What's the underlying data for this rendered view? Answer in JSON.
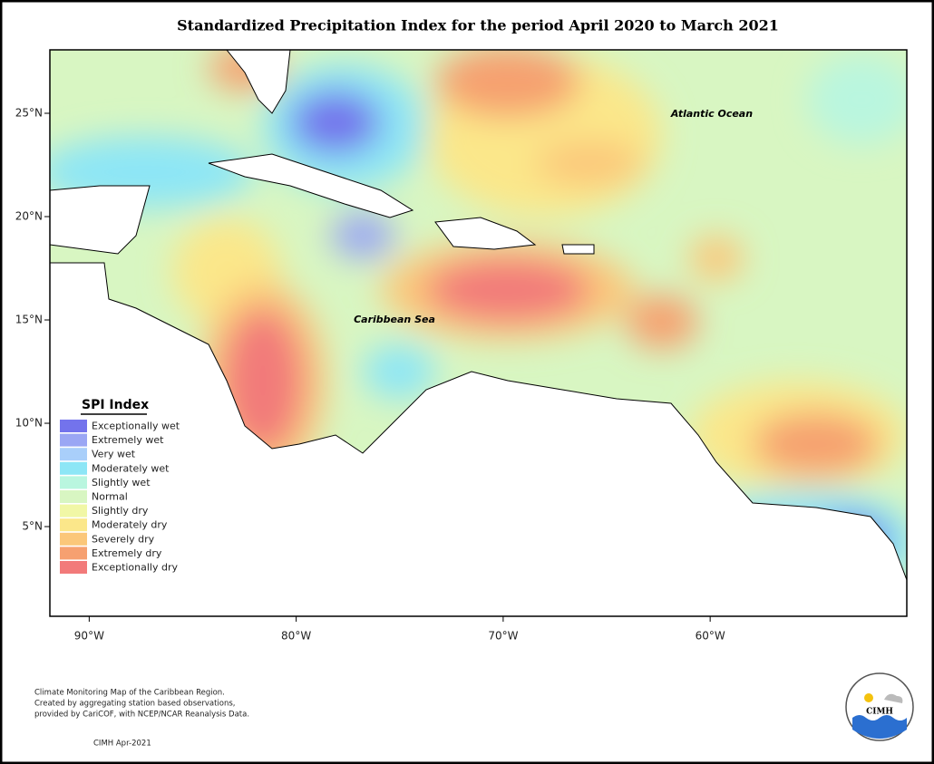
{
  "title": "Standardized Precipitation Index for the period April 2020 to March 2021",
  "map": {
    "xlim": [
      -91.9,
      -50.5
    ],
    "ylim": [
      0.66,
      28.07
    ],
    "xticks": [
      {
        "value": -90,
        "label": "90°W"
      },
      {
        "value": -80,
        "label": "80°W"
      },
      {
        "value": -70,
        "label": "70°W"
      },
      {
        "value": -60,
        "label": "60°W"
      }
    ],
    "yticks": [
      {
        "value": 5,
        "label": "5°N"
      },
      {
        "value": 10,
        "label": "10°N"
      },
      {
        "value": 15,
        "label": "15°N"
      },
      {
        "value": 20,
        "label": "20°N"
      },
      {
        "value": 25,
        "label": "25°N"
      }
    ],
    "annotations": [
      "Atlantic Ocean",
      "Caribbean Sea"
    ]
  },
  "legend": {
    "title": "SPI Index",
    "items": [
      {
        "label": "Exceptionally wet",
        "color": "#7373ec"
      },
      {
        "label": "Extremely wet",
        "color": "#9aa6f4"
      },
      {
        "label": "Very wet",
        "color": "#a9cffa"
      },
      {
        "label": "Moderately wet",
        "color": "#8de6f6"
      },
      {
        "label": "Slightly wet",
        "color": "#b9f6df"
      },
      {
        "label": "Normal",
        "color": "#d8f6c2"
      },
      {
        "label": "Slightly dry",
        "color": "#f1f7a6"
      },
      {
        "label": "Moderately dry",
        "color": "#fbe78a"
      },
      {
        "label": "Severely dry",
        "color": "#fbc77a"
      },
      {
        "label": "Extremely dry",
        "color": "#f6a070"
      },
      {
        "label": "Exceptionally dry",
        "color": "#f27a7a"
      }
    ]
  },
  "footer": {
    "lines": [
      "Climate Monitoring Map of the Caribbean Region.",
      "Created by aggregating station based observations,",
      "provided by CariCOF, with NCEP/NCAR Reanalysis Data."
    ],
    "credit": "CIMH Apr-2021"
  },
  "logo": {
    "label": "CIMH"
  }
}
